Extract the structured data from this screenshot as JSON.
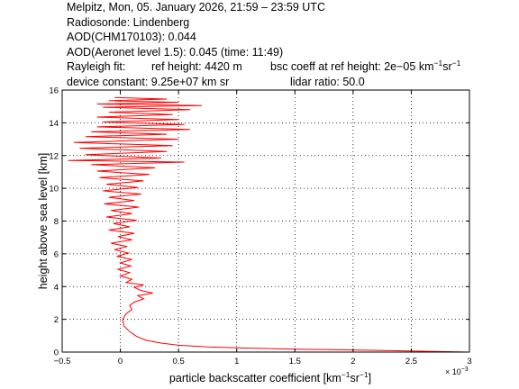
{
  "header": {
    "line1": "Melpitz, Mon, 05. January 2026, 21:59 – 23:59 UTC",
    "line2": "Radiosonde: Lindenberg",
    "line3": "AOD(CHM170103): 0.044",
    "line4": "AOD(Aeronet level 1.5): 0.045   (time: 11:49)",
    "rayleigh_label": "Rayleigh fit:",
    "rayleigh_ref_height": "ref height: 4420 m",
    "rayleigh_bsc_prefix": "bsc coeff at ref height: 2e−05 km",
    "rayleigh_bsc_sup1": "−1",
    "rayleigh_bsc_sr": "sr",
    "rayleigh_bsc_sup2": "−1",
    "device_constant": "device constant: 9.25e+07 km sr",
    "lidar_ratio": "lidar ratio: 50.0"
  },
  "chart_data": {
    "type": "line",
    "title": "",
    "xlabel": "particle backscatter coefficient [km⁻¹sr⁻¹]",
    "xlabel_parts": [
      "particle backscatter coefficient [km",
      "−1",
      "sr",
      "−1",
      "]"
    ],
    "ylabel": "height above sea level [km]",
    "x_multiplier": "× 10",
    "x_multiplier_exp": "−3",
    "xlim": [
      -0.5,
      3
    ],
    "ylim": [
      0,
      16
    ],
    "xticks": [
      -0.5,
      0,
      0.5,
      1,
      1.5,
      2,
      2.5,
      3
    ],
    "xtick_labels": [
      "−0.5",
      "0",
      "0.5",
      "1",
      "1.5",
      "2",
      "2.5",
      "3"
    ],
    "yticks": [
      0,
      2,
      4,
      6,
      8,
      10,
      12,
      14,
      16
    ],
    "ytick_labels": [
      "0",
      "2",
      "4",
      "6",
      "8",
      "10",
      "12",
      "14",
      "16"
    ],
    "grid": true,
    "line_color": "#ff0000",
    "series": [
      {
        "values": [
          [
            3.0,
            0.0
          ],
          [
            2.05,
            0.12
          ],
          [
            1.5,
            0.18
          ],
          [
            1.05,
            0.25
          ],
          [
            0.75,
            0.32
          ],
          [
            0.5,
            0.42
          ],
          [
            0.35,
            0.55
          ],
          [
            0.22,
            0.72
          ],
          [
            0.14,
            0.95
          ],
          [
            0.08,
            1.25
          ],
          [
            0.03,
            1.6
          ],
          [
            0.02,
            2.0
          ],
          [
            0.05,
            2.35
          ],
          [
            0.1,
            2.6
          ],
          [
            0.08,
            2.85
          ],
          [
            0.12,
            3.05
          ],
          [
            0.2,
            3.25
          ],
          [
            0.15,
            3.45
          ],
          [
            0.28,
            3.6
          ],
          [
            0.18,
            3.75
          ],
          [
            0.12,
            3.95
          ],
          [
            0.2,
            4.1
          ],
          [
            0.05,
            4.25
          ],
          [
            0.1,
            4.45
          ],
          [
            0.0,
            4.65
          ],
          [
            0.08,
            4.85
          ],
          [
            -0.02,
            5.05
          ],
          [
            0.09,
            5.25
          ],
          [
            0.0,
            5.45
          ],
          [
            0.1,
            5.65
          ],
          [
            -0.03,
            5.85
          ],
          [
            0.07,
            6.05
          ],
          [
            -0.05,
            6.25
          ],
          [
            0.06,
            6.45
          ],
          [
            -0.08,
            6.65
          ],
          [
            0.1,
            6.85
          ],
          [
            -0.02,
            7.05
          ],
          [
            0.12,
            7.25
          ],
          [
            -0.1,
            7.45
          ],
          [
            0.08,
            7.65
          ],
          [
            -0.06,
            7.85
          ],
          [
            0.14,
            8.05
          ],
          [
            -0.12,
            8.25
          ],
          [
            0.1,
            8.45
          ],
          [
            -0.08,
            8.65
          ],
          [
            0.16,
            8.85
          ],
          [
            -0.14,
            9.05
          ],
          [
            0.12,
            9.25
          ],
          [
            -0.1,
            9.45
          ],
          [
            0.18,
            9.65
          ],
          [
            -0.15,
            9.85
          ],
          [
            0.15,
            10.05
          ],
          [
            -0.12,
            10.25
          ],
          [
            0.2,
            10.45
          ],
          [
            -0.18,
            10.65
          ],
          [
            0.25,
            10.85
          ],
          [
            -0.2,
            11.05
          ],
          [
            0.3,
            11.25
          ],
          [
            -0.25,
            11.45
          ],
          [
            0.55,
            11.6
          ],
          [
            -0.45,
            11.7
          ],
          [
            0.35,
            11.85
          ],
          [
            -0.3,
            12.05
          ],
          [
            0.4,
            12.25
          ],
          [
            -0.35,
            12.45
          ],
          [
            0.45,
            12.6
          ],
          [
            -0.4,
            12.8
          ],
          [
            0.5,
            13.0
          ],
          [
            -0.3,
            13.15
          ],
          [
            0.4,
            13.3
          ],
          [
            -0.25,
            13.45
          ],
          [
            0.6,
            13.6
          ],
          [
            -0.2,
            13.75
          ],
          [
            0.55,
            13.9
          ],
          [
            -0.15,
            14.05
          ],
          [
            0.5,
            14.2
          ],
          [
            -0.2,
            14.35
          ],
          [
            0.45,
            14.5
          ],
          [
            -0.1,
            14.65
          ],
          [
            0.6,
            14.8
          ],
          [
            -0.15,
            14.95
          ],
          [
            0.7,
            15.05
          ],
          [
            -0.2,
            15.15
          ],
          [
            0.5,
            15.25
          ],
          [
            -0.1,
            15.35
          ],
          [
            0.4,
            15.45
          ],
          [
            -0.05,
            15.55
          ]
        ]
      }
    ]
  }
}
